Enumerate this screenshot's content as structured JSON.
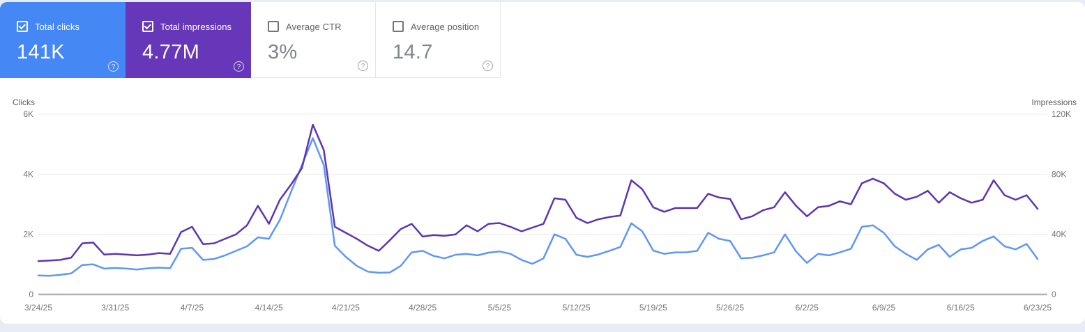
{
  "icons": {
    "help": "?"
  },
  "cards": [
    {
      "id": "clicks",
      "label": "Total clicks",
      "value": "141K",
      "selected": true,
      "color": "#4587f5"
    },
    {
      "id": "impressions",
      "label": "Total impressions",
      "value": "4.77M",
      "selected": true,
      "color": "#6637b8"
    },
    {
      "id": "ctr",
      "label": "Average CTR",
      "value": "3%",
      "selected": false,
      "color": "#ffffff"
    },
    {
      "id": "position",
      "label": "Average position",
      "value": "14.7",
      "selected": false,
      "color": "#ffffff"
    }
  ],
  "chart_data": {
    "type": "line",
    "x_start_date": "3/24/25",
    "x_end_date": "6/23/25",
    "x_tick_labels": [
      "3/24/25",
      "3/31/25",
      "4/7/25",
      "4/14/25",
      "4/21/25",
      "4/28/25",
      "5/5/25",
      "5/12/25",
      "5/19/25",
      "5/26/25",
      "6/2/25",
      "6/9/25",
      "6/16/25",
      "6/23/25"
    ],
    "left_axis": {
      "title": "Clicks",
      "tick_labels": [
        "0",
        "2K",
        "4K",
        "6K"
      ],
      "max": 6000
    },
    "right_axis": {
      "title": "Impressions",
      "tick_labels": [
        "0",
        "40K",
        "80K",
        "120K"
      ],
      "max": 120000
    },
    "grid": true,
    "legend_position": "none",
    "colors": {
      "grid": "#ececec",
      "baseline": "#b0b3b8",
      "tick_text": "#757575"
    },
    "series": [
      {
        "name": "Clicks",
        "axis": "left",
        "color": "#5e97f6",
        "values": [
          630,
          620,
          650,
          700,
          980,
          1000,
          860,
          880,
          860,
          830,
          870,
          890,
          870,
          1520,
          1550,
          1150,
          1180,
          1300,
          1450,
          1600,
          1900,
          1850,
          2480,
          3400,
          4300,
          5200,
          4300,
          1620,
          1250,
          950,
          760,
          720,
          730,
          950,
          1400,
          1450,
          1280,
          1200,
          1320,
          1350,
          1300,
          1390,
          1430,
          1350,
          1150,
          1020,
          1200,
          2000,
          1850,
          1320,
          1250,
          1330,
          1450,
          1580,
          2370,
          2100,
          1460,
          1350,
          1400,
          1400,
          1450,
          2050,
          1850,
          1780,
          1200,
          1220,
          1300,
          1400,
          2000,
          1430,
          1050,
          1350,
          1300,
          1400,
          1520,
          2250,
          2300,
          2050,
          1600,
          1350,
          1150,
          1500,
          1650,
          1250,
          1500,
          1550,
          1780,
          1930,
          1600,
          1500,
          1680,
          1180
        ]
      },
      {
        "name": "Impressions",
        "axis": "right",
        "color": "#5e35b1",
        "values": [
          22200,
          22500,
          23000,
          24500,
          34000,
          34500,
          26500,
          27000,
          26500,
          26000,
          26500,
          27500,
          27000,
          41500,
          45000,
          33500,
          34000,
          37000,
          40000,
          46000,
          59000,
          47000,
          63000,
          73000,
          84000,
          113000,
          96000,
          45000,
          41000,
          37000,
          32500,
          29000,
          36000,
          43500,
          47000,
          38500,
          39500,
          39000,
          40000,
          46000,
          42000,
          47000,
          47500,
          45000,
          42000,
          44500,
          47000,
          64000,
          63000,
          51000,
          47500,
          50000,
          51500,
          52500,
          76000,
          70000,
          58000,
          55000,
          57500,
          57500,
          57500,
          67000,
          64500,
          63500,
          50000,
          52000,
          56000,
          58000,
          68000,
          59000,
          52000,
          58000,
          59000,
          62000,
          60000,
          74000,
          77000,
          74000,
          67000,
          63000,
          65000,
          69000,
          61000,
          68000,
          64000,
          61000,
          63000,
          76000,
          66000,
          63000,
          66000,
          57000
        ]
      }
    ]
  }
}
